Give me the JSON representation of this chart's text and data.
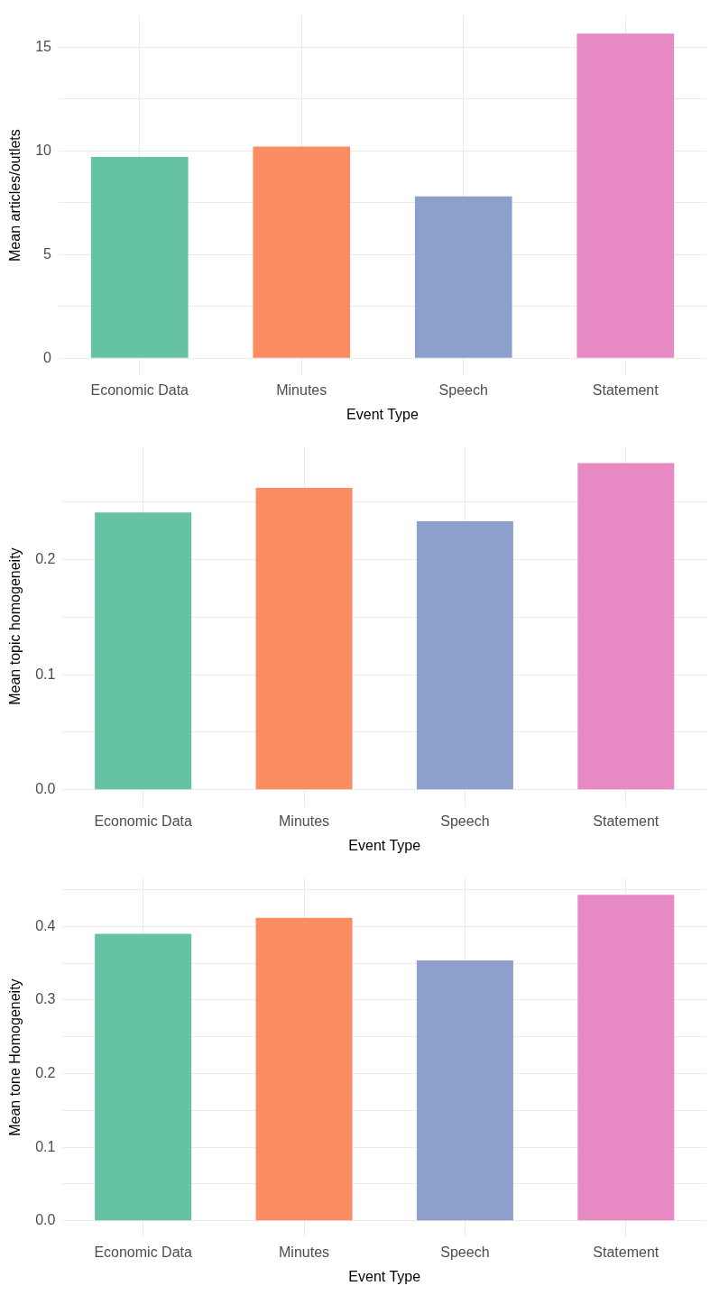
{
  "chart_data": [
    {
      "type": "bar",
      "xlabel": "Event Type",
      "ylabel": "Mean articles/outlets",
      "categories": [
        "Economic Data",
        "Minutes",
        "Speech",
        "Statement"
      ],
      "values": [
        9.7,
        10.2,
        7.8,
        15.65
      ],
      "colors": [
        "#66c2a5",
        "#fc8d62",
        "#8da0cb",
        "#e78ac3"
      ],
      "ylim": [
        -0.8,
        16.5
      ],
      "yticks": [
        0,
        {
          "value": 2.5,
          "label": null
        },
        5,
        {
          "value": 7.5,
          "label": null
        },
        10,
        {
          "value": 12.5,
          "label": null
        },
        15
      ],
      "grid": true
    },
    {
      "type": "bar",
      "xlabel": "Event Type",
      "ylabel": "Mean topic homogeneity",
      "categories": [
        "Economic Data",
        "Minutes",
        "Speech",
        "Statement"
      ],
      "values": [
        0.241,
        0.2625,
        0.2335,
        0.284
      ],
      "colors": [
        "#66c2a5",
        "#fc8d62",
        "#8da0cb",
        "#e78ac3"
      ],
      "ylim": [
        -0.014,
        0.298
      ],
      "yticks": [
        {
          "value": 0,
          "label": "0.0"
        },
        {
          "value": 0.05,
          "label": null
        },
        0.1,
        {
          "value": 0.15,
          "label": null
        },
        0.2,
        {
          "value": 0.25,
          "label": null
        }
      ],
      "grid": true
    },
    {
      "type": "bar",
      "xlabel": "Event Type",
      "ylabel": "Mean tone Homogeneity",
      "categories": [
        "Economic Data",
        "Minutes",
        "Speech",
        "Statement"
      ],
      "values": [
        0.39,
        0.412,
        0.354,
        0.443
      ],
      "colors": [
        "#66c2a5",
        "#fc8d62",
        "#8da0cb",
        "#e78ac3"
      ],
      "ylim": [
        -0.022,
        0.466
      ],
      "yticks": [
        {
          "value": 0,
          "label": "0.0"
        },
        {
          "value": 0.05,
          "label": null
        },
        0.1,
        {
          "value": 0.15,
          "label": null
        },
        0.2,
        {
          "value": 0.25,
          "label": null
        },
        0.3,
        {
          "value": 0.35,
          "label": null
        },
        0.4,
        {
          "value": 0.45,
          "label": null
        }
      ],
      "grid": true
    }
  ]
}
